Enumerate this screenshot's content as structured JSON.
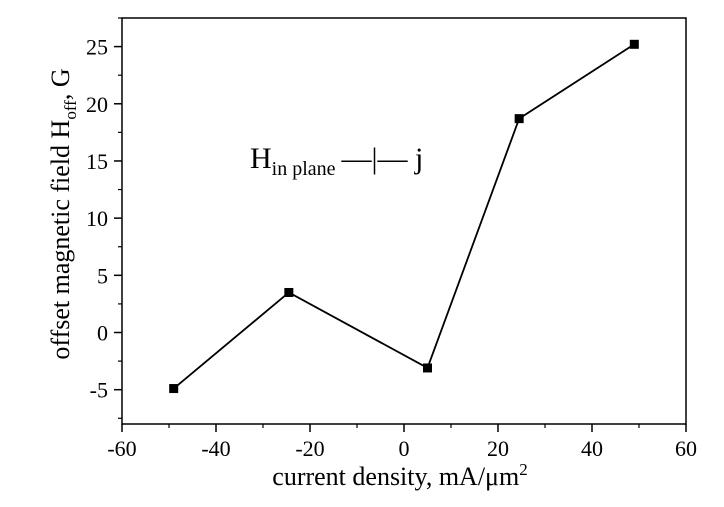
{
  "chart_data": {
    "type": "line",
    "xlabel": "current density, mA/μm",
    "xlabel_sup": "2",
    "ylabel": "offset magnetic field H",
    "ylabel_sub": "off",
    "ylabel_suffix": ", G",
    "annotation": {
      "main": "H",
      "sub": "in plane",
      "rest": "—|— j"
    },
    "xlim": [
      -60,
      60
    ],
    "ylim": [
      -8,
      27.5
    ],
    "xticks": [
      -60,
      -40,
      -20,
      0,
      20,
      40,
      60
    ],
    "yticks": [
      -5,
      0,
      5,
      10,
      15,
      20,
      25
    ],
    "grid": false,
    "series": [
      {
        "x": [
          -49,
          -24.5,
          5,
          24.5,
          49
        ],
        "y": [
          -4.9,
          3.5,
          -3.1,
          18.7,
          25.2
        ],
        "marker": "square",
        "color": "#000000"
      }
    ]
  }
}
